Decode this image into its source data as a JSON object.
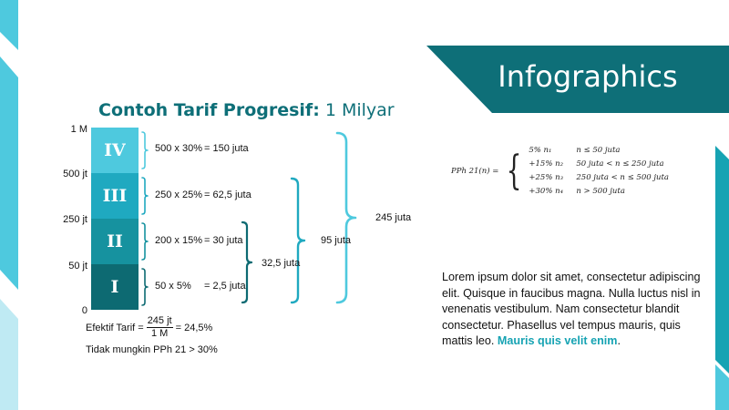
{
  "banner": {
    "title": "Infographics"
  },
  "chart": {
    "title_bold": "Contoh Tarif Progresif:",
    "title_rest": " 1 Milyar",
    "y_labels": [
      "1 M",
      "500 jt",
      "250 jt",
      "50 jt",
      "0"
    ],
    "bars": [
      {
        "label": "IV",
        "calc": "500 x 30%",
        "result": "= 150 juta",
        "color": "#4ec9de",
        "from": 500,
        "to": 1000
      },
      {
        "label": "III",
        "calc": "250 x 25%",
        "result": "= 62,5 juta",
        "color": "#1fa9c0",
        "from": 250,
        "to": 500
      },
      {
        "label": "II",
        "calc": "200 x 15%",
        "result": "= 30 juta",
        "color": "#16929f",
        "from": 50,
        "to": 250
      },
      {
        "label": "I",
        "calc": "50 x 5%",
        "result": "= 2,5 juta",
        "color": "#0d6a72",
        "from": 0,
        "to": 50
      }
    ],
    "sums": [
      "32,5 juta",
      "95 juta",
      "245 juta"
    ]
  },
  "effective": {
    "label": "Efektif Tarif =",
    "numerator": "245 jt",
    "denominator": "1 M",
    "result": "= 24,5%"
  },
  "note": "Tidak mungkin PPh 21 > 30%",
  "formula": {
    "lhs": "PPh 21(n) =",
    "rows": [
      {
        "rate": "5% n₁",
        "cond": "n ≤ 50 juta"
      },
      {
        "rate": "+15% n₂",
        "cond": "50 juta < n ≤ 250 juta"
      },
      {
        "rate": "+25% n₃",
        "cond": "250 juta < n ≤ 500 juta"
      },
      {
        "rate": "+30% n₄",
        "cond": "n > 500 juta"
      }
    ]
  },
  "lorem": {
    "text": "Lorem ipsum dolor sit amet, consectetur adipiscing elit. Quisque in faucibus magna. Nulla luctus nisl in venenatis vestibulum. Nam consectetur blandit consectetur. Phasellus vel tempus mauris, quis mattis leo.",
    "highlight": "Mauris quis velit enim",
    "end": "."
  },
  "colors": {
    "teal_dark": "#0e6f78",
    "teal_mid": "#16a3b3",
    "cyan": "#4ec9de",
    "cyan_light": "#bfeaf3"
  }
}
